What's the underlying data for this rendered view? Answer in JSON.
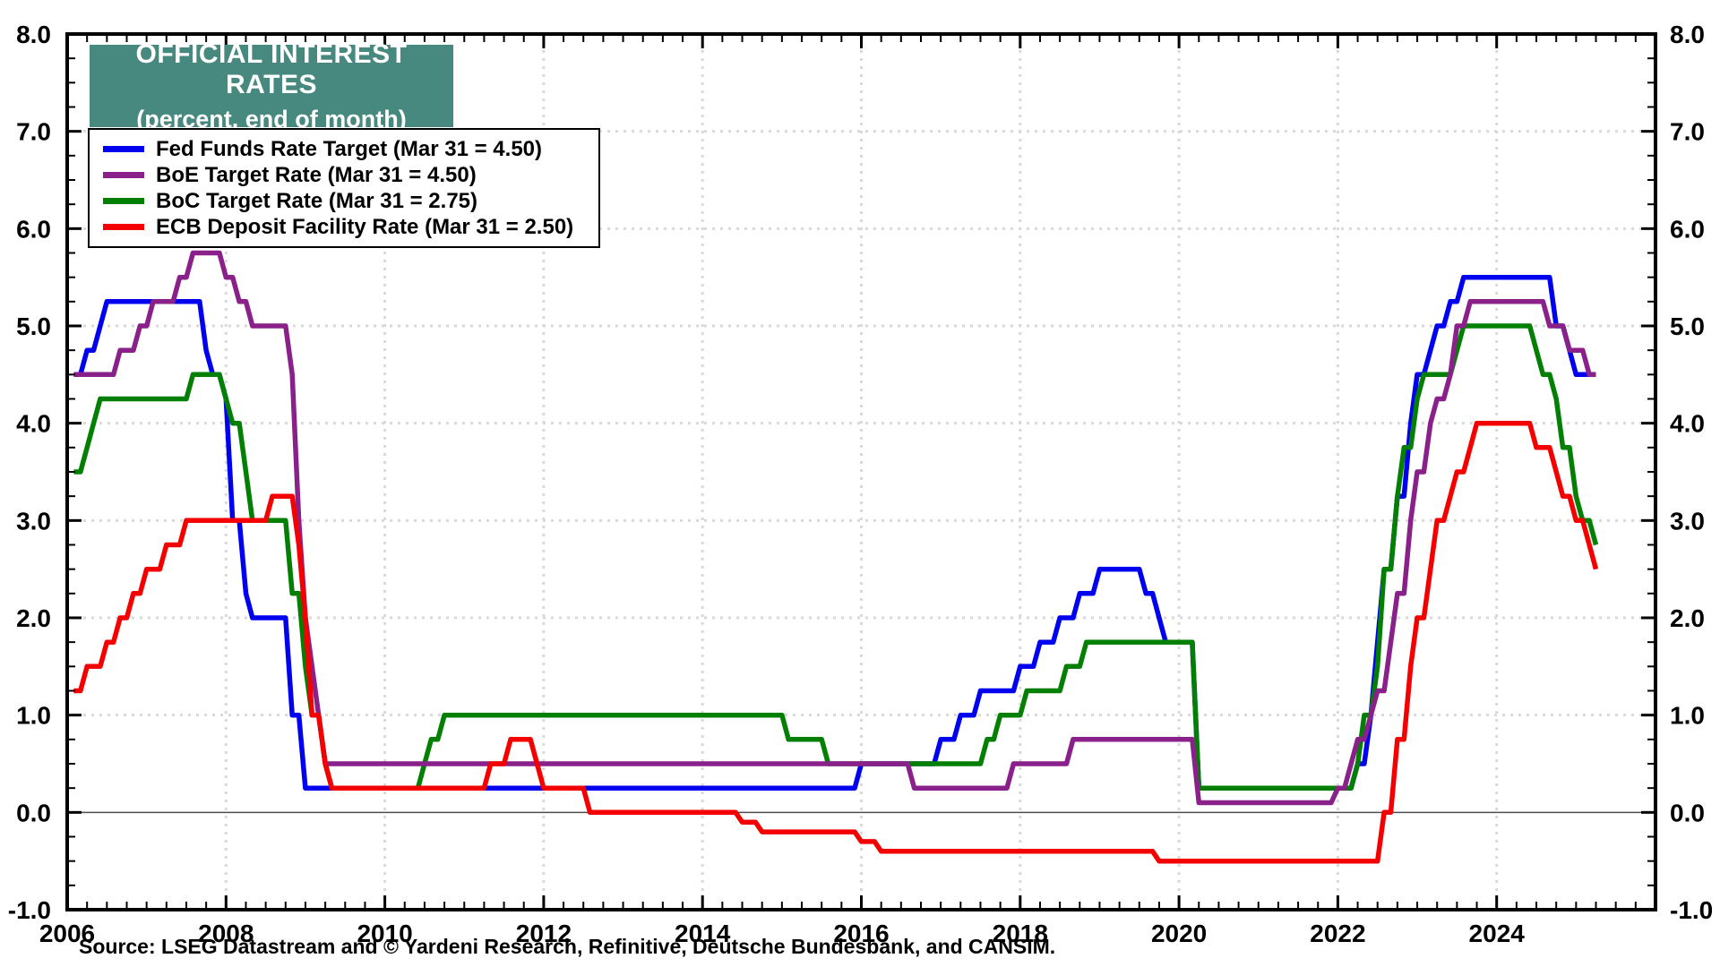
{
  "title": {
    "line1": "OFFICIAL INTEREST RATES",
    "line2": "(percent, end of month)",
    "box_color": "#47897E"
  },
  "source_note": "Source: LSEG Datastream and © Yardeni Research, Refinitive, Deutsche Bundesbank, and CANSIM.",
  "colors": {
    "grid": "#D9D9D9",
    "zero_line": "#4D4D4D",
    "frame": "#000000"
  },
  "chart_data": {
    "type": "line",
    "title": "OFFICIAL INTEREST RATES (percent, end of month)",
    "x_axis": {
      "min": 2006.0,
      "max": 2026.0,
      "tick_years": [
        2006,
        2008,
        2010,
        2012,
        2014,
        2016,
        2018,
        2020,
        2022,
        2024
      ],
      "tick_labels": [
        "2006",
        "2008",
        "2010",
        "2012",
        "2014",
        "2016",
        "2018",
        "2020",
        "2022",
        "2024"
      ],
      "minor_tick_interval_years": 0.25,
      "gridlines_at_even_years": true
    },
    "y_axis": {
      "min": -1.0,
      "max": 8.0,
      "major_interval": 1.0,
      "minor_interval": 0.25,
      "tick_labels": [
        "8.0",
        "7.0",
        "6.0",
        "5.0",
        "4.0",
        "3.0",
        "2.0",
        "1.0",
        "0.0",
        "-1.0"
      ],
      "labels_on_both_sides": true,
      "zero_line": true,
      "grid": "dotted"
    },
    "frequency": "monthly, end of month",
    "data_start": "2006-01",
    "data_end": "2025-03",
    "legend_position": "top-left",
    "series": [
      {
        "name": "Fed Funds Rate Target (Mar 31 = 4.50)",
        "color": "#0000F0",
        "z": 1,
        "steps": [
          [
            "2006-01",
            4.5
          ],
          [
            "2006-03",
            4.75
          ],
          [
            "2006-05",
            5.0
          ],
          [
            "2006-06",
            5.25
          ],
          [
            "2007-09",
            4.75
          ],
          [
            "2007-10",
            4.5
          ],
          [
            "2007-12",
            4.25
          ],
          [
            "2008-01",
            3.0
          ],
          [
            "2008-03",
            2.25
          ],
          [
            "2008-04",
            2.0
          ],
          [
            "2008-10",
            1.0
          ],
          [
            "2008-12",
            0.25
          ],
          [
            "2015-12",
            0.5
          ],
          [
            "2016-12",
            0.75
          ],
          [
            "2017-03",
            1.0
          ],
          [
            "2017-06",
            1.25
          ],
          [
            "2017-12",
            1.5
          ],
          [
            "2018-03",
            1.75
          ],
          [
            "2018-06",
            2.0
          ],
          [
            "2018-09",
            2.25
          ],
          [
            "2018-12",
            2.5
          ],
          [
            "2019-07",
            2.25
          ],
          [
            "2019-09",
            2.0
          ],
          [
            "2019-10",
            1.75
          ],
          [
            "2020-03",
            0.25
          ],
          [
            "2022-03",
            0.5
          ],
          [
            "2022-05",
            1.0
          ],
          [
            "2022-06",
            1.75
          ],
          [
            "2022-07",
            2.5
          ],
          [
            "2022-09",
            3.25
          ],
          [
            "2022-11",
            4.0
          ],
          [
            "2022-12",
            4.5
          ],
          [
            "2023-02",
            4.75
          ],
          [
            "2023-03",
            5.0
          ],
          [
            "2023-05",
            5.25
          ],
          [
            "2023-07",
            5.5
          ],
          [
            "2024-09",
            5.0
          ],
          [
            "2024-11",
            4.75
          ],
          [
            "2024-12",
            4.5
          ]
        ]
      },
      {
        "name": "BoE Target Rate (Mar 31 = 4.50)",
        "color": "#8A2089",
        "z": 3,
        "steps": [
          [
            "2006-01",
            4.5
          ],
          [
            "2006-08",
            4.75
          ],
          [
            "2006-11",
            5.0
          ],
          [
            "2007-01",
            5.25
          ],
          [
            "2007-05",
            5.5
          ],
          [
            "2007-07",
            5.75
          ],
          [
            "2007-12",
            5.5
          ],
          [
            "2008-02",
            5.25
          ],
          [
            "2008-04",
            5.0
          ],
          [
            "2008-10",
            4.5
          ],
          [
            "2008-11",
            3.0
          ],
          [
            "2008-12",
            2.0
          ],
          [
            "2009-01",
            1.5
          ],
          [
            "2009-02",
            1.0
          ],
          [
            "2009-03",
            0.5
          ],
          [
            "2016-08",
            0.25
          ],
          [
            "2017-11",
            0.5
          ],
          [
            "2018-08",
            0.75
          ],
          [
            "2020-03",
            0.1
          ],
          [
            "2021-12",
            0.25
          ],
          [
            "2022-02",
            0.5
          ],
          [
            "2022-03",
            0.75
          ],
          [
            "2022-05",
            1.0
          ],
          [
            "2022-06",
            1.25
          ],
          [
            "2022-08",
            1.75
          ],
          [
            "2022-09",
            2.25
          ],
          [
            "2022-11",
            3.0
          ],
          [
            "2022-12",
            3.5
          ],
          [
            "2023-02",
            4.0
          ],
          [
            "2023-03",
            4.25
          ],
          [
            "2023-05",
            4.5
          ],
          [
            "2023-06",
            5.0
          ],
          [
            "2023-08",
            5.25
          ],
          [
            "2024-08",
            5.0
          ],
          [
            "2024-11",
            4.75
          ],
          [
            "2025-02",
            4.5
          ]
        ]
      },
      {
        "name": "BoC Target Rate (Mar 31 = 2.75)",
        "color": "#038003",
        "z": 2,
        "steps": [
          [
            "2006-01",
            3.5
          ],
          [
            "2006-03",
            3.75
          ],
          [
            "2006-04",
            4.0
          ],
          [
            "2006-05",
            4.25
          ],
          [
            "2007-07",
            4.5
          ],
          [
            "2007-12",
            4.25
          ],
          [
            "2008-01",
            4.0
          ],
          [
            "2008-03",
            3.5
          ],
          [
            "2008-04",
            3.0
          ],
          [
            "2008-10",
            2.25
          ],
          [
            "2008-12",
            1.5
          ],
          [
            "2009-01",
            1.0
          ],
          [
            "2009-03",
            0.5
          ],
          [
            "2009-04",
            0.25
          ],
          [
            "2010-06",
            0.5
          ],
          [
            "2010-07",
            0.75
          ],
          [
            "2010-09",
            1.0
          ],
          [
            "2015-01",
            0.75
          ],
          [
            "2015-07",
            0.5
          ],
          [
            "2017-07",
            0.75
          ],
          [
            "2017-09",
            1.0
          ],
          [
            "2018-01",
            1.25
          ],
          [
            "2018-07",
            1.5
          ],
          [
            "2018-10",
            1.75
          ],
          [
            "2020-03",
            0.25
          ],
          [
            "2022-03",
            0.5
          ],
          [
            "2022-04",
            1.0
          ],
          [
            "2022-06",
            1.5
          ],
          [
            "2022-07",
            2.5
          ],
          [
            "2022-09",
            3.25
          ],
          [
            "2022-10",
            3.75
          ],
          [
            "2022-12",
            4.25
          ],
          [
            "2023-01",
            4.5
          ],
          [
            "2023-06",
            4.75
          ],
          [
            "2023-07",
            5.0
          ],
          [
            "2024-06",
            4.75
          ],
          [
            "2024-07",
            4.5
          ],
          [
            "2024-09",
            4.25
          ],
          [
            "2024-10",
            3.75
          ],
          [
            "2024-12",
            3.25
          ],
          [
            "2025-01",
            3.0
          ],
          [
            "2025-03",
            2.75
          ]
        ]
      },
      {
        "name": "ECB Deposit Facility Rate (Mar 31 = 2.50)",
        "color": "#F50000",
        "z": 4,
        "steps": [
          [
            "2006-01",
            1.25
          ],
          [
            "2006-03",
            1.5
          ],
          [
            "2006-06",
            1.75
          ],
          [
            "2006-08",
            2.0
          ],
          [
            "2006-10",
            2.25
          ],
          [
            "2006-12",
            2.5
          ],
          [
            "2007-03",
            2.75
          ],
          [
            "2007-06",
            3.0
          ],
          [
            "2008-07",
            3.25
          ],
          [
            "2008-11",
            2.75
          ],
          [
            "2008-12",
            2.0
          ],
          [
            "2009-01",
            1.0
          ],
          [
            "2009-03",
            0.5
          ],
          [
            "2009-04",
            0.25
          ],
          [
            "2011-04",
            0.5
          ],
          [
            "2011-07",
            0.75
          ],
          [
            "2011-11",
            0.5
          ],
          [
            "2011-12",
            0.25
          ],
          [
            "2012-07",
            0.0
          ],
          [
            "2014-06",
            -0.1
          ],
          [
            "2014-09",
            -0.2
          ],
          [
            "2015-12",
            -0.3
          ],
          [
            "2016-03",
            -0.4
          ],
          [
            "2019-09",
            -0.5
          ],
          [
            "2022-07",
            0.0
          ],
          [
            "2022-09",
            0.75
          ],
          [
            "2022-11",
            1.5
          ],
          [
            "2022-12",
            2.0
          ],
          [
            "2023-02",
            2.5
          ],
          [
            "2023-03",
            3.0
          ],
          [
            "2023-05",
            3.25
          ],
          [
            "2023-06",
            3.5
          ],
          [
            "2023-08",
            3.75
          ],
          [
            "2023-09",
            4.0
          ],
          [
            "2024-06",
            3.75
          ],
          [
            "2024-09",
            3.5
          ],
          [
            "2024-10",
            3.25
          ],
          [
            "2024-12",
            3.0
          ],
          [
            "2025-02",
            2.75
          ],
          [
            "2025-03",
            2.5
          ]
        ]
      }
    ]
  }
}
